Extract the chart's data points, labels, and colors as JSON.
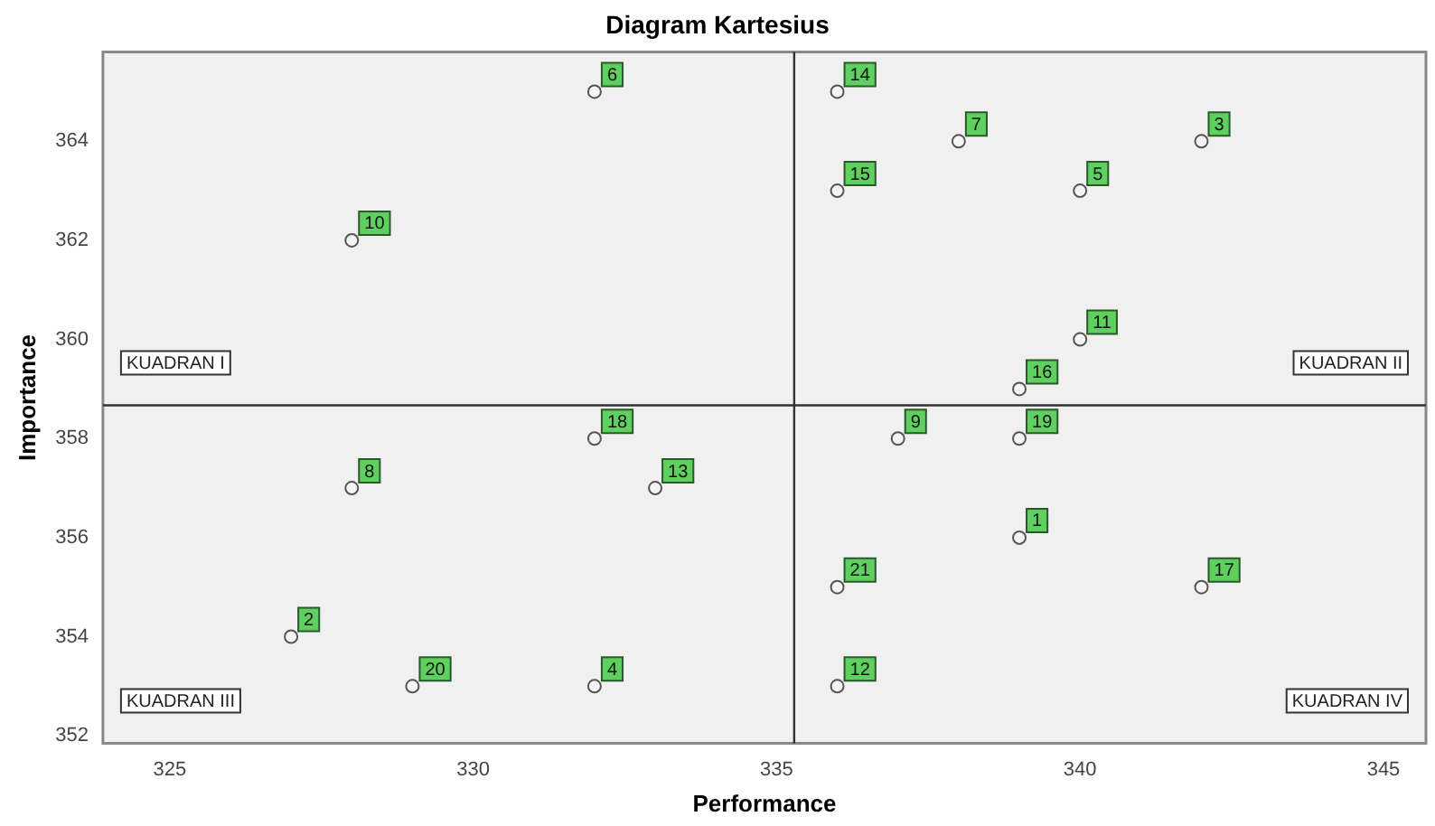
{
  "chart_data": {
    "type": "scatter",
    "title": "Diagram Kartesius",
    "xlabel": "Performance",
    "ylabel": "Importance",
    "series": [
      {
        "name": "1",
        "color": "#555555",
        "x": [
          339
        ],
        "values": [
          356
        ]
      },
      {
        "name": "2",
        "color": "#555555",
        "x": [
          327
        ],
        "values": [
          354
        ]
      },
      {
        "name": "3",
        "color": "#555555",
        "x": [
          342
        ],
        "values": [
          364
        ]
      },
      {
        "name": "4",
        "color": "#555555",
        "x": [
          332
        ],
        "values": [
          353
        ]
      },
      {
        "name": "5",
        "color": "#555555",
        "x": [
          340
        ],
        "values": [
          363
        ]
      },
      {
        "name": "6",
        "color": "#555555",
        "x": [
          332
        ],
        "values": [
          365
        ]
      },
      {
        "name": "7",
        "color": "#555555",
        "x": [
          338
        ],
        "values": [
          364
        ]
      },
      {
        "name": "8",
        "color": "#555555",
        "x": [
          328
        ],
        "values": [
          357
        ]
      },
      {
        "name": "9",
        "color": "#555555",
        "x": [
          337
        ],
        "values": [
          358
        ]
      },
      {
        "name": "10",
        "color": "#555555",
        "x": [
          328
        ],
        "values": [
          362
        ]
      },
      {
        "name": "11",
        "color": "#555555",
        "x": [
          340
        ],
        "values": [
          360
        ]
      },
      {
        "name": "12",
        "color": "#555555",
        "x": [
          336
        ],
        "values": [
          353
        ]
      },
      {
        "name": "13",
        "color": "#555555",
        "x": [
          333
        ],
        "values": [
          357
        ]
      },
      {
        "name": "14",
        "color": "#555555",
        "x": [
          336
        ],
        "values": [
          365
        ]
      },
      {
        "name": "15",
        "color": "#555555",
        "x": [
          336
        ],
        "values": [
          363
        ]
      },
      {
        "name": "16",
        "color": "#555555",
        "x": [
          339
        ],
        "values": [
          359
        ]
      },
      {
        "name": "17",
        "color": "#555555",
        "x": [
          342
        ],
        "values": [
          355
        ]
      },
      {
        "name": "18",
        "color": "#555555",
        "x": [
          332
        ],
        "values": [
          358
        ]
      },
      {
        "name": "19",
        "color": "#555555",
        "x": [
          339
        ],
        "values": [
          358
        ]
      },
      {
        "name": "20",
        "color": "#555555",
        "x": [
          329
        ],
        "values": [
          353
        ]
      },
      {
        "name": "21",
        "color": "#555555",
        "x": [
          336
        ],
        "values": [
          355
        ]
      }
    ],
    "marker": "circle",
    "xlim": [
      323.9,
      345.7
    ],
    "xticks": [
      325,
      330,
      335,
      340,
      345
    ],
    "ylim": [
      351.85,
      365.8
    ],
    "yticks": [
      352,
      354,
      356,
      358,
      360,
      362,
      364
    ],
    "ref_lines": [
      {
        "axis": "x",
        "value": 335.29,
        "color": "#333333"
      },
      {
        "axis": "y",
        "value": 358.67,
        "color": "#333333"
      }
    ],
    "annotations": [
      "KUADRAN I",
      "KUADRAN II",
      "KUADRAN III",
      "KUADRAN IV"
    ],
    "grid": false,
    "legend": false
  }
}
